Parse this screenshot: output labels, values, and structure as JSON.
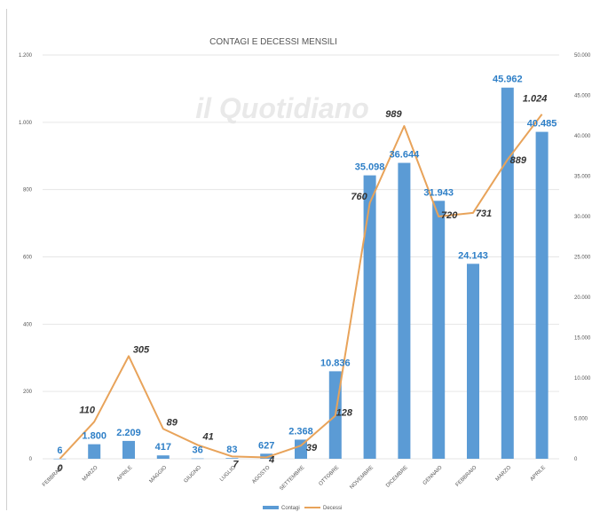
{
  "watermark": "il Quotidiano",
  "chart_data": {
    "type": "bar+line",
    "title": "CONTAGI E DECESSI MENSILI",
    "categories": [
      "FEBBRAIO",
      "MARZO",
      "APRILE",
      "MAGGIO",
      "GIUGNO",
      "LUGLIO",
      "AGOSTO",
      "SETTEMBRE",
      "OTTOBRE",
      "NOVEMBRE",
      "DICEMBRE",
      "GENNAIO",
      "FEBBRAIO",
      "MARZO",
      "APRILE"
    ],
    "series": [
      {
        "name": "Contagi",
        "type": "bar",
        "axis": "right",
        "color": "#5b9bd5",
        "values": [
          6,
          1800,
          2209,
          417,
          36,
          83,
          627,
          2368,
          10836,
          35098,
          36644,
          31943,
          24143,
          45962,
          40485
        ],
        "labels": [
          "6",
          "1.800",
          "2.209",
          "417",
          "36",
          "83",
          "627",
          "2.368",
          "10.836",
          "35.098",
          "36.644",
          "31.943",
          "24.143",
          "45.962",
          "40.485"
        ]
      },
      {
        "name": "Decessi",
        "type": "line",
        "axis": "left",
        "color": "#e8a35a",
        "values": [
          0,
          110,
          305,
          89,
          41,
          7,
          4,
          39,
          128,
          760,
          989,
          720,
          731,
          889,
          1024
        ],
        "labels": [
          "0",
          "110",
          "305",
          "89",
          "41",
          "7",
          "4",
          "39",
          "128",
          "760",
          "989",
          "720",
          "731",
          "889",
          "1.024"
        ]
      }
    ],
    "left_axis": {
      "min": 0,
      "max": 1200,
      "ticks": [
        0,
        200,
        400,
        600,
        800,
        1000,
        1200
      ],
      "tick_labels": [
        "0",
        "200",
        "400",
        "600",
        "800",
        "1.000",
        "1.200"
      ]
    },
    "right_axis": {
      "min": 0,
      "max": 50000,
      "ticks": [
        0,
        5000,
        10000,
        15000,
        20000,
        25000,
        30000,
        35000,
        40000,
        45000,
        50000
      ],
      "tick_labels": [
        "0",
        "5.000",
        "10.000",
        "15.000",
        "20.000",
        "25.000",
        "30.000",
        "35.000",
        "40.000",
        "45.000",
        "50.000"
      ]
    },
    "legend": [
      "Contagi",
      "Decessi"
    ],
    "legend_position": "bottom",
    "grid": "horizontal"
  }
}
